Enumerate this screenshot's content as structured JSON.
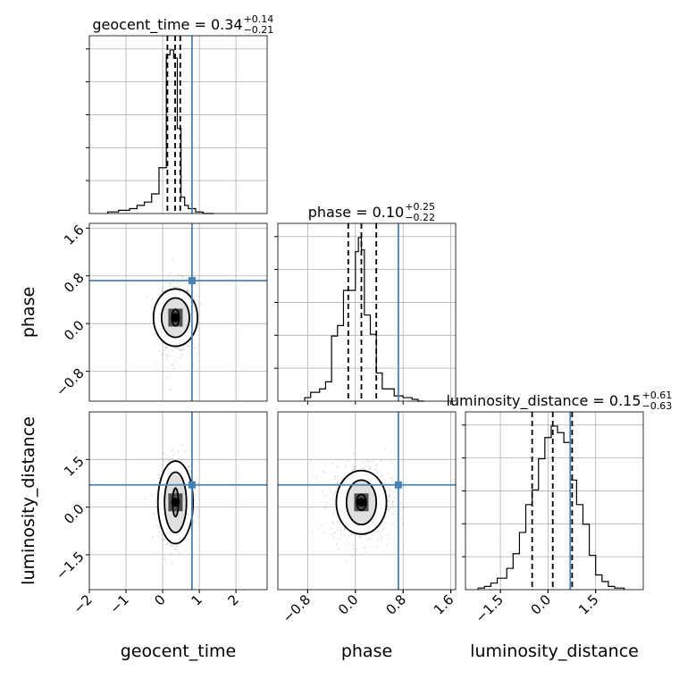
{
  "chart_data": {
    "type": "corner",
    "params": [
      "geocent_time",
      "phase",
      "luminosity_distance"
    ],
    "truth_color": "#4682b4",
    "truths": {
      "geocent_time": 0.8,
      "phase": 0.72,
      "luminosity_distance": 0.7
    },
    "axes": {
      "geocent_time": {
        "range": [
          -2,
          2.85
        ],
        "ticks": [
          -2,
          -1,
          0,
          1,
          2
        ],
        "tick_labels": [
          "−2",
          "−1",
          "0",
          "1",
          "2"
        ]
      },
      "phase": {
        "range": [
          -1.3,
          1.68
        ],
        "ticks": [
          -0.8,
          0.0,
          0.8,
          1.6
        ],
        "tick_labels": [
          "−0.8",
          "0.0",
          "0.8",
          "1.6"
        ]
      },
      "luminosity_distance": {
        "range": [
          -2.6,
          3.0
        ],
        "ticks": [
          -1.5,
          0.0,
          1.5
        ],
        "tick_labels": [
          "−1.5",
          "0.0",
          "1.5"
        ]
      }
    },
    "diagonal": [
      {
        "param": "geocent_time",
        "title_main": "geocent_time = 0.34",
        "title_sup": "+0.14",
        "title_sub": "−0.21",
        "quantiles": [
          0.13,
          0.34,
          0.48
        ],
        "bins": [
          -1.5,
          -1.2,
          -0.9,
          -0.7,
          -0.5,
          -0.3,
          -0.1,
          0.1,
          0.2,
          0.3,
          0.4,
          0.5,
          0.6,
          0.7,
          0.9,
          1.1,
          1.4
        ],
        "counts": [
          0.01,
          0.02,
          0.03,
          0.05,
          0.07,
          0.12,
          0.28,
          0.97,
          1.0,
          0.95,
          0.52,
          0.1,
          0.05,
          0.03,
          0.01,
          0.0
        ]
      },
      {
        "param": "phase",
        "title_main": "phase = 0.10",
        "title_sup": "+0.25",
        "title_sub": "−0.22",
        "quantiles": [
          -0.12,
          0.1,
          0.35
        ],
        "bins": [
          -0.85,
          -0.75,
          -0.6,
          -0.5,
          -0.4,
          -0.3,
          -0.2,
          -0.1,
          0.0,
          0.05,
          0.1,
          0.15,
          0.25,
          0.35,
          0.45,
          0.55,
          0.65,
          0.8,
          0.95,
          1.05,
          1.15
        ],
        "counts": [
          0.02,
          0.05,
          0.07,
          0.11,
          0.37,
          0.43,
          0.63,
          0.63,
          0.85,
          0.93,
          0.86,
          0.49,
          0.38,
          0.16,
          0.07,
          0.07,
          0.03,
          0.02,
          0.01,
          0.0
        ]
      },
      {
        "param": "luminosity_distance",
        "title_main": "luminosity_distance = 0.15",
        "title_sup": "+0.61",
        "title_sub": "−0.63",
        "quantiles": [
          -0.5,
          0.15,
          0.76
        ],
        "bins": [
          -2.2,
          -2.0,
          -1.8,
          -1.6,
          -1.3,
          -1.1,
          -0.9,
          -0.7,
          -0.5,
          -0.3,
          -0.1,
          0.1,
          0.3,
          0.5,
          0.7,
          0.9,
          1.1,
          1.3,
          1.5,
          1.7,
          1.9,
          2.1,
          2.4
        ],
        "counts": [
          0.01,
          0.02,
          0.04,
          0.07,
          0.13,
          0.22,
          0.35,
          0.52,
          0.61,
          0.8,
          0.93,
          1.0,
          0.96,
          0.9,
          0.67,
          0.52,
          0.4,
          0.21,
          0.09,
          0.05,
          0.02,
          0.01
        ]
      }
    ],
    "offdiagonal": [
      {
        "x": "geocent_time",
        "y": "phase",
        "center": [
          0.35,
          0.1
        ],
        "spread": [
          0.22,
          0.3
        ],
        "contour_levels": [
          [
            0.1,
            0.14
          ],
          [
            0.38,
            0.33
          ],
          [
            0.6,
            0.48
          ]
        ]
      },
      {
        "x": "geocent_time",
        "y": "luminosity_distance",
        "center": [
          0.35,
          0.15
        ],
        "spread": [
          0.22,
          0.62
        ],
        "contour_levels": [
          [
            0.08,
            0.45
          ],
          [
            0.3,
            0.95
          ],
          [
            0.48,
            1.3
          ]
        ]
      },
      {
        "x": "phase",
        "y": "luminosity_distance",
        "center": [
          0.1,
          0.15
        ],
        "spread": [
          0.25,
          0.62
        ],
        "contour_levels": [
          [
            0.08,
            0.25
          ],
          [
            0.25,
            0.7
          ],
          [
            0.42,
            1.0
          ]
        ]
      }
    ],
    "xlabels": [
      "geocent_time",
      "phase",
      "luminosity_distance"
    ],
    "ylabels": [
      "phase",
      "luminosity_distance"
    ],
    "grid": true
  }
}
